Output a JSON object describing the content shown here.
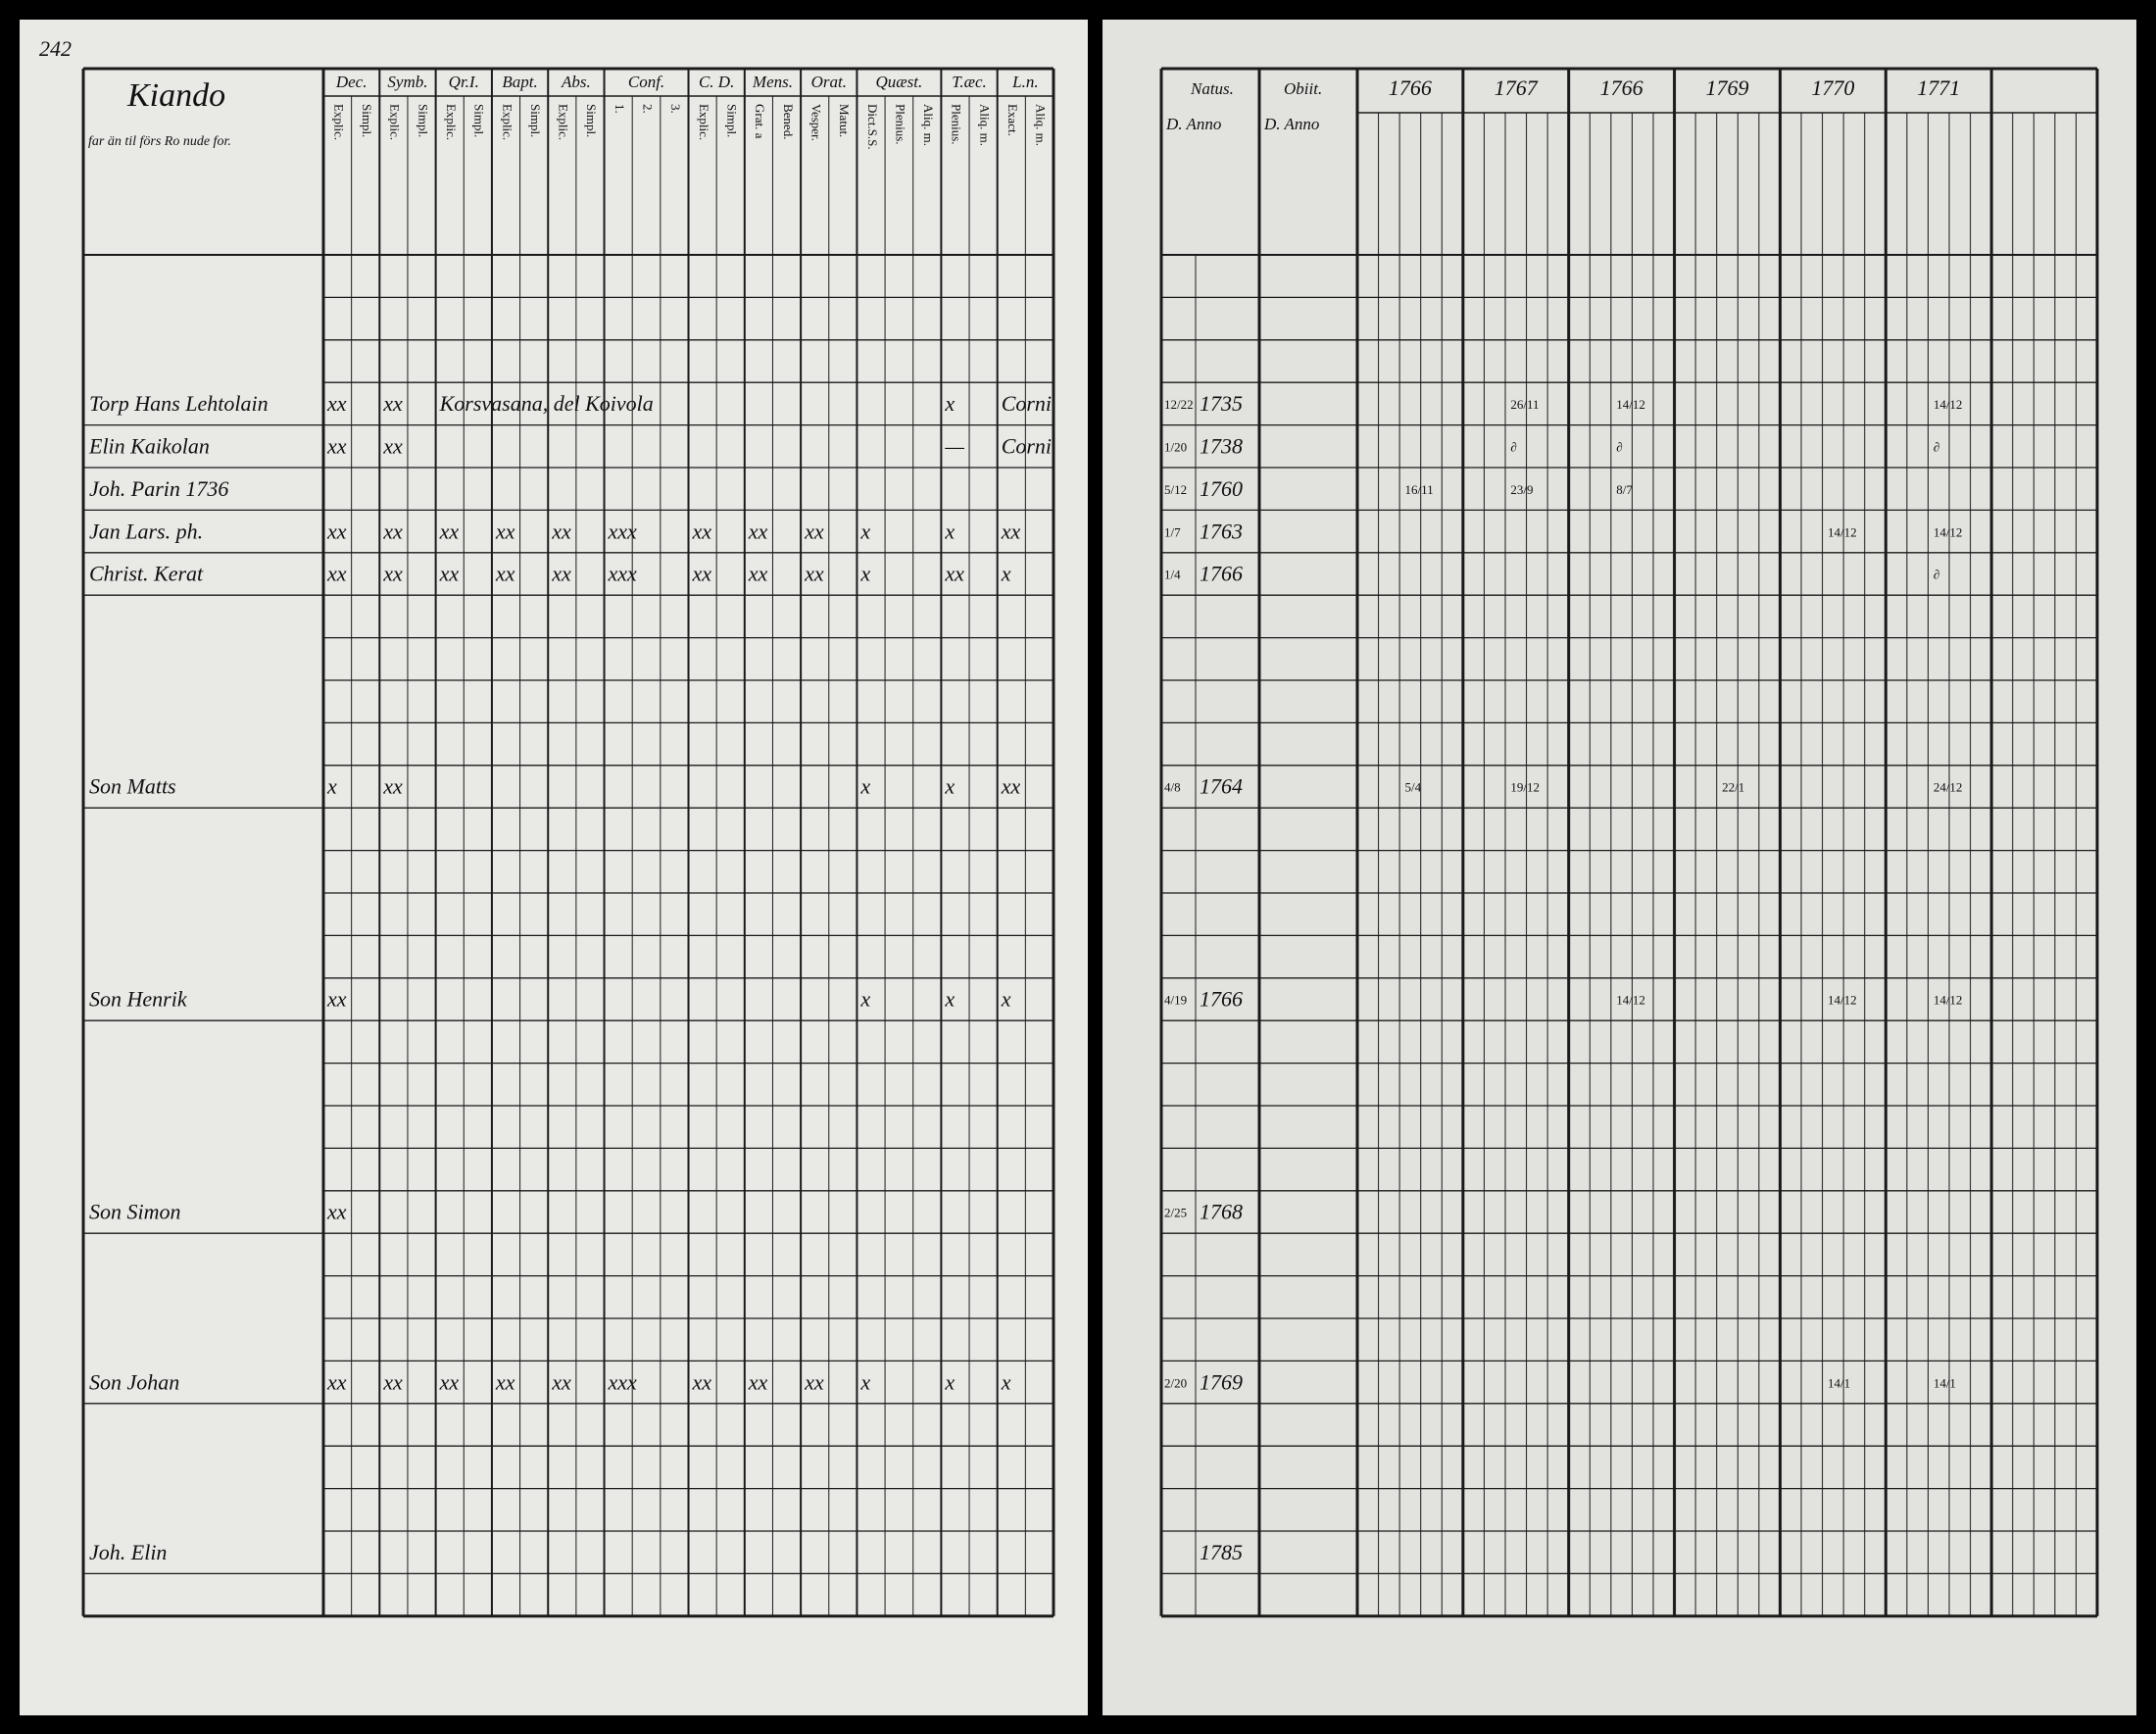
{
  "page_number": "242",
  "left_page": {
    "household": {
      "title": "Kiando",
      "note": "far än til förs Ro nude for."
    },
    "columns": [
      {
        "title": "Dec.",
        "sub": [
          "Explic.",
          "Simpl."
        ]
      },
      {
        "title": "Symb.",
        "sub": [
          "Explic.",
          "Simpl."
        ]
      },
      {
        "title": "Qr.I.",
        "sub": [
          "Explic.",
          "Simpl."
        ]
      },
      {
        "title": "Bapt.",
        "sub": [
          "Explic.",
          "Simpl."
        ]
      },
      {
        "title": "Abs.",
        "sub": [
          "Explic.",
          "Simpl."
        ]
      },
      {
        "title": "Conf.",
        "sub": [
          "1.",
          "2.",
          "3."
        ]
      },
      {
        "title": "C. D.",
        "sub": [
          "Explic.",
          "Simpl."
        ]
      },
      {
        "title": "Mens.",
        "sub": [
          "Grat. a",
          "Bened."
        ]
      },
      {
        "title": "Orat.",
        "sub": [
          "Vesper.",
          "Matut."
        ]
      },
      {
        "title": "Quæst.",
        "sub": [
          "Dict.S.S.",
          "Plenius.",
          "Aliq. m."
        ]
      },
      {
        "title": "T.æc.",
        "sub": [
          "Plenius.",
          "Aliq. m."
        ]
      },
      {
        "title": "L.n.",
        "sub": [
          "Exact.",
          "Aliq. m."
        ]
      }
    ],
    "rows": [
      {
        "name": "Torp Hans Lehtolain",
        "marks": [
          "xx",
          "xx",
          "Korsvasana, del Koivola",
          null,
          null,
          null,
          null,
          null,
          null,
          null,
          "x",
          "Corni"
        ]
      },
      {
        "name": "Elin Kaikolan",
        "marks": [
          "xx",
          "xx",
          null,
          null,
          null,
          null,
          null,
          null,
          null,
          null,
          "—",
          "Corni"
        ]
      },
      {
        "name": "Joh. Parin 1736"
      },
      {
        "name": "Jan Lars. ph.",
        "marks": [
          "xx",
          "xx",
          "xx",
          "xx",
          "xx",
          "xxx",
          "xx",
          "xx",
          "xx",
          "x",
          "x",
          "xx"
        ]
      },
      {
        "name": "Christ. Kerat",
        "marks": [
          "xx",
          "xx",
          "xx",
          "xx",
          "xx",
          "xxx",
          "xx",
          "xx",
          "xx",
          "x",
          "xx",
          "x"
        ]
      },
      {
        "name": "Son Matts",
        "marks": [
          "x",
          "xx",
          null,
          null,
          null,
          null,
          null,
          null,
          null,
          "x",
          "x",
          "xx"
        ]
      },
      {
        "name": "Son Henrik",
        "marks": [
          "xx",
          null,
          null,
          null,
          null,
          null,
          null,
          null,
          null,
          "x",
          "x",
          "x"
        ]
      },
      {
        "name": "Son Simon",
        "marks": [
          "xx",
          null,
          null,
          null,
          null,
          null,
          null,
          null,
          null,
          null,
          null,
          null
        ]
      },
      {
        "name": "Son Johan",
        "marks": [
          "xx",
          "xx",
          "xx",
          "xx",
          "xx",
          "xxx",
          "xx",
          "xx",
          "xx",
          "x",
          "x",
          "x"
        ]
      },
      {
        "name": "Joh. Elin"
      }
    ]
  },
  "right_page": {
    "natus": {
      "title": "Natus.",
      "sub": "D. Anno"
    },
    "obiit": {
      "title": "Obiit.",
      "sub": "D. Anno"
    },
    "years": [
      "1766",
      "1767",
      "1766",
      "1769",
      "1770",
      "1771"
    ],
    "rows": [
      {
        "day": "12/22",
        "year": "1735",
        "entries": [
          null,
          "26/11",
          "14/12",
          null,
          null,
          "14/12"
        ]
      },
      {
        "day": "1/20",
        "year": "1738",
        "entries": [
          null,
          "∂",
          "∂",
          null,
          null,
          "∂"
        ]
      },
      {
        "day": "5/12",
        "year": "1760",
        "entries": [
          "16/11",
          "23/9",
          "8/7",
          null,
          null,
          null
        ]
      },
      {
        "day": "1/7",
        "year": "1763",
        "entries": [
          null,
          null,
          null,
          null,
          "14/12",
          "14/12"
        ]
      },
      {
        "day": "1/4",
        "year": "1766",
        "entries": [
          null,
          null,
          null,
          null,
          null,
          "∂"
        ]
      },
      {
        "day": "4/8",
        "year": "1764",
        "entries": [
          "5/4",
          "19/12",
          null,
          "22/1",
          null,
          "24/12"
        ]
      },
      {
        "day": "4/19",
        "year": "1766",
        "entries": [
          null,
          null,
          "14/12",
          null,
          "14/12",
          "14/12"
        ]
      },
      {
        "day": "2/25",
        "year": "1768"
      },
      {
        "day": "2/20",
        "year": "1769",
        "entries": [
          null,
          null,
          null,
          null,
          "14/1",
          "14/1"
        ]
      },
      {
        "year": "1785"
      }
    ]
  }
}
